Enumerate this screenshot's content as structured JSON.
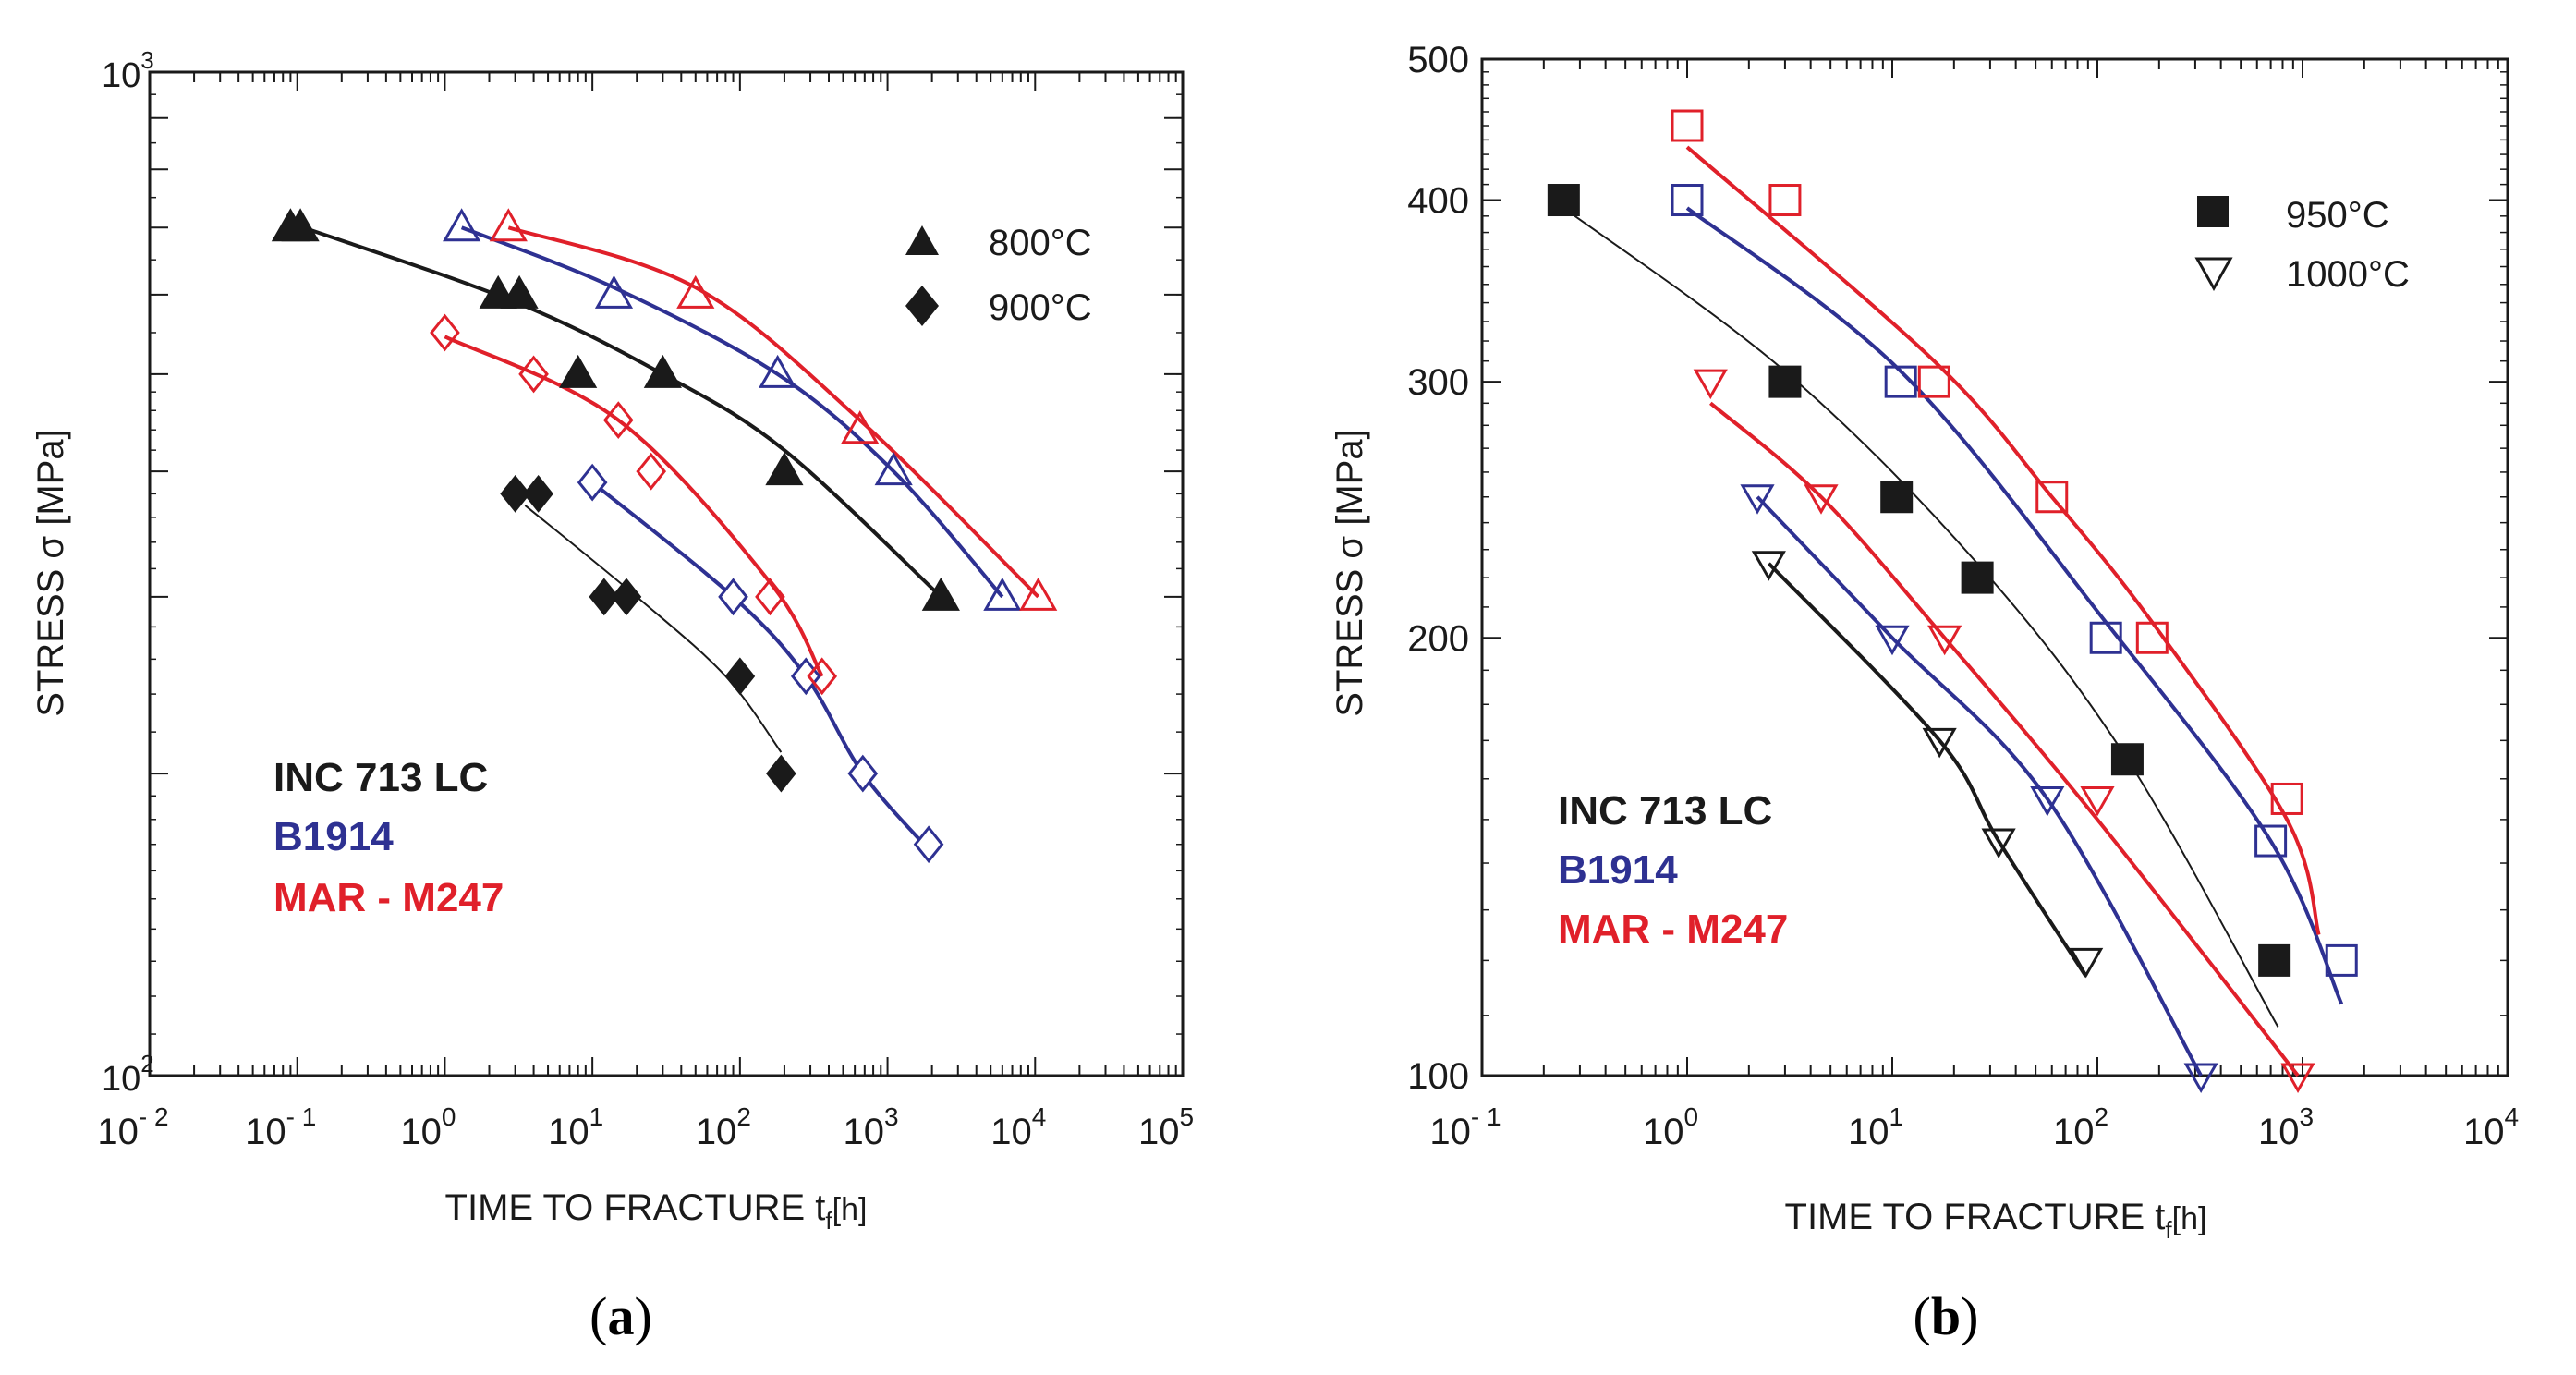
{
  "colors": {
    "inc": "#1a1a1a",
    "b1914": "#2e3192",
    "mar": "#e0202a"
  },
  "chart_data": [
    {
      "type": "scatter",
      "panel_label": "a",
      "xlabel": "TIME TO FRACTURE",
      "xlabel_sym": "t",
      "xlabel_sub": "f",
      "xlabel_unit": "[h]",
      "ylabel": "STRESS  σ  [MPa]",
      "x_scale": "log",
      "y_scale": "log",
      "xlim": [
        0.01,
        100000
      ],
      "ylim": [
        100,
        1000
      ],
      "x_ticks": [
        {
          "base": "10",
          "exp": "- 2"
        },
        {
          "base": "10",
          "exp": "- 1"
        },
        {
          "base": "10",
          "exp": "0"
        },
        {
          "base": "10",
          "exp": "1"
        },
        {
          "base": "10",
          "exp": "2"
        },
        {
          "base": "10",
          "exp": "3"
        },
        {
          "base": "10",
          "exp": "4"
        },
        {
          "base": "10",
          "exp": "5"
        }
      ],
      "y_ticks": [
        {
          "base": "10",
          "exp": "2"
        },
        {
          "base": "10",
          "exp": "3"
        }
      ],
      "legend": [
        {
          "marker": "triangle-filled",
          "label": "800°C"
        },
        {
          "marker": "diamond-filled",
          "label": "900°C"
        }
      ],
      "alloys": [
        "INC 713 LC",
        "B1914",
        "MAR - M247"
      ],
      "series": [
        {
          "alloy": "INC 713 LC",
          "temp": "800°C",
          "marker": "triangle",
          "filled": true,
          "color": "inc",
          "x": [
            0.09,
            0.105,
            2.3,
            3.2,
            8,
            30,
            200,
            2300
          ],
          "y": [
            700,
            700,
            600,
            600,
            500,
            500,
            400,
            300
          ],
          "fit_x": [
            0.11,
            3,
            30,
            200,
            2300
          ],
          "fit_y": [
            700,
            590,
            500,
            420,
            300
          ]
        },
        {
          "alloy": "B1914",
          "temp": "800°C",
          "marker": "triangle",
          "filled": false,
          "color": "b1914",
          "x": [
            1.3,
            14,
            180,
            1100,
            6000
          ],
          "y": [
            700,
            600,
            500,
            400,
            300
          ],
          "fit_x": [
            1.3,
            14,
            180,
            1100,
            6000
          ],
          "fit_y": [
            700,
            610,
            500,
            400,
            300
          ]
        },
        {
          "alloy": "MAR - M247",
          "temp": "800°C",
          "marker": "triangle",
          "filled": false,
          "color": "mar",
          "x": [
            2.7,
            50,
            650,
            10500
          ],
          "y": [
            700,
            600,
            440,
            300
          ],
          "fit_x": [
            2.7,
            50,
            650,
            10500
          ],
          "fit_y": [
            700,
            610,
            450,
            300
          ]
        },
        {
          "alloy": "INC 713 LC",
          "temp": "900°C",
          "marker": "diamond",
          "filled": true,
          "color": "inc",
          "x": [
            3,
            4.3,
            12,
            17,
            100,
            190
          ],
          "y": [
            380,
            380,
            300,
            300,
            250,
            200
          ],
          "fit_x": [
            3.5,
            20,
            80,
            190
          ],
          "fit_y": [
            370,
            300,
            250,
            210
          ]
        },
        {
          "alloy": "B1914",
          "temp": "900°C",
          "marker": "diamond",
          "filled": true,
          "filled_color": "white",
          "color": "b1914",
          "x": [
            10,
            90,
            280,
            680,
            1900
          ],
          "y": [
            390,
            300,
            250,
            200,
            170
          ],
          "fit_x": [
            10,
            90,
            280,
            680,
            1900
          ],
          "fit_y": [
            390,
            300,
            250,
            200,
            168
          ]
        },
        {
          "alloy": "MAR - M247",
          "temp": "900°C",
          "marker": "diamond",
          "filled": false,
          "color": "mar",
          "x": [
            1,
            4,
            15,
            25,
            160,
            360
          ],
          "y": [
            550,
            500,
            450,
            400,
            300,
            250
          ],
          "fit_x": [
            1,
            15,
            160,
            360
          ],
          "fit_y": [
            545,
            450,
            310,
            250
          ]
        }
      ]
    },
    {
      "type": "scatter",
      "panel_label": "b",
      "xlabel": "TIME TO FRACTURE",
      "xlabel_sym": "t",
      "xlabel_sub": "f",
      "xlabel_unit": "[h]",
      "ylabel": "STRESS  σ  [MPa]",
      "x_scale": "log",
      "y_scale": "log",
      "xlim": [
        0.1,
        10000
      ],
      "ylim": [
        100,
        500
      ],
      "x_ticks": [
        {
          "base": "10",
          "exp": "- 1"
        },
        {
          "base": "10",
          "exp": "0"
        },
        {
          "base": "10",
          "exp": "1"
        },
        {
          "base": "10",
          "exp": "2"
        },
        {
          "base": "10",
          "exp": "3"
        },
        {
          "base": "10",
          "exp": "4"
        }
      ],
      "y_ticks": [
        "100",
        "200",
        "300",
        "400",
        "500"
      ],
      "legend": [
        {
          "marker": "square-filled",
          "label": "950°C"
        },
        {
          "marker": "triangle-down-open",
          "label": "1000°C"
        }
      ],
      "alloys": [
        "INC 713 LC",
        "B1914",
        "MAR - M247"
      ],
      "series": [
        {
          "alloy": "INC 713 LC",
          "temp": "950°C",
          "marker": "square",
          "filled": true,
          "color": "inc",
          "x": [
            0.25,
            3,
            10.5,
            26,
            140,
            730
          ],
          "y": [
            400,
            300,
            250,
            220,
            165,
            120
          ],
          "fit_x": [
            0.25,
            3,
            26,
            140,
            760
          ],
          "fit_y": [
            395,
            305,
            225,
            165,
            108
          ]
        },
        {
          "alloy": "B1914",
          "temp": "950°C",
          "marker": "square",
          "filled": false,
          "color": "b1914",
          "x": [
            1,
            11,
            110,
            700,
            1550
          ],
          "y": [
            400,
            300,
            200,
            145,
            120
          ],
          "fit_x": [
            1,
            11,
            110,
            700,
            1550
          ],
          "fit_y": [
            395,
            305,
            205,
            145,
            112
          ]
        },
        {
          "alloy": "MAR - M247",
          "temp": "950°C",
          "marker": "square",
          "filled": false,
          "color": "mar",
          "x": [
            1,
            3,
            16,
            60,
            185,
            840
          ],
          "y": [
            450,
            400,
            300,
            250,
            200,
            155
          ],
          "fit_x": [
            1,
            16,
            60,
            185,
            840,
            1200
          ],
          "fit_y": [
            435,
            310,
            250,
            205,
            150,
            125
          ]
        },
        {
          "alloy": "INC 713 LC",
          "temp": "1000°C",
          "marker": "triangle-down",
          "filled": false,
          "color": "inc",
          "x": [
            2.5,
            17,
            33,
            88
          ],
          "y": [
            225,
            170,
            145,
            120
          ],
          "fit_x": [
            2.5,
            17,
            33,
            88
          ],
          "fit_y": [
            225,
            170,
            145,
            117
          ]
        },
        {
          "alloy": "B1914",
          "temp": "1000°C",
          "marker": "triangle-down",
          "filled": false,
          "color": "b1914",
          "x": [
            2.2,
            10,
            57,
            320
          ],
          "y": [
            250,
            200,
            155,
            100
          ],
          "fit_x": [
            2.2,
            10,
            57,
            320
          ],
          "fit_y": [
            250,
            200,
            155,
            100
          ]
        },
        {
          "alloy": "MAR - M247",
          "temp": "1000°C",
          "marker": "triangle-down",
          "filled": false,
          "color": "mar",
          "x": [
            1.3,
            4.5,
            18,
            100,
            950
          ],
          "y": [
            300,
            250,
            200,
            155,
            100
          ],
          "fit_x": [
            1.3,
            4.5,
            18,
            100,
            950
          ],
          "fit_y": [
            290,
            250,
            200,
            150,
            100
          ]
        }
      ]
    }
  ]
}
